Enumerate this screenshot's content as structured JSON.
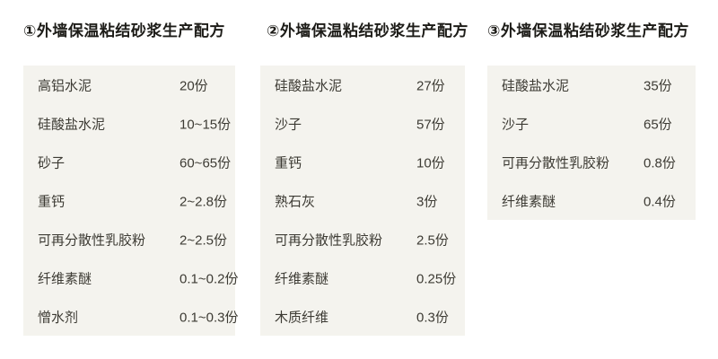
{
  "colors": {
    "page_background": "#ffffff",
    "table_background": "#f4f3ee",
    "heading_text": "#1d1c18",
    "table_text": "#3d3b34"
  },
  "columns": [
    {
      "heading": "①外墙保温粘结砂浆生产配方",
      "rows": [
        {
          "name": "高铝水泥",
          "amount": "20份"
        },
        {
          "name": "硅酸盐水泥",
          "amount": "10~15份"
        },
        {
          "name": "砂子",
          "amount": "60~65份"
        },
        {
          "name": "重钙",
          "amount": "2~2.8份"
        },
        {
          "name": "可再分散性乳胶粉",
          "amount": "2~2.5份"
        },
        {
          "name": "纤维素醚",
          "amount": "0.1~0.2份"
        },
        {
          "name": "憎水剂",
          "amount": "0.1~0.3份"
        }
      ]
    },
    {
      "heading": "②外墙保温粘结砂浆生产配方",
      "rows": [
        {
          "name": "硅酸盐水泥",
          "amount": "27份"
        },
        {
          "name": "沙子",
          "amount": "57份"
        },
        {
          "name": "重钙",
          "amount": "10份"
        },
        {
          "name": "熟石灰",
          "amount": "3份"
        },
        {
          "name": "可再分散性乳胶粉",
          "amount": "2.5份"
        },
        {
          "name": "纤维素醚",
          "amount": "0.25份"
        },
        {
          "name": "木质纤维",
          "amount": "0.3份"
        }
      ]
    },
    {
      "heading": "③外墙保温粘结砂浆生产配方",
      "rows": [
        {
          "name": "硅酸盐水泥",
          "amount": "35份"
        },
        {
          "name": "沙子",
          "amount": "65份"
        },
        {
          "name": "可再分散性乳胶粉",
          "amount": "0.8份"
        },
        {
          "name": "纤维素醚",
          "amount": "0.4份"
        }
      ]
    }
  ]
}
